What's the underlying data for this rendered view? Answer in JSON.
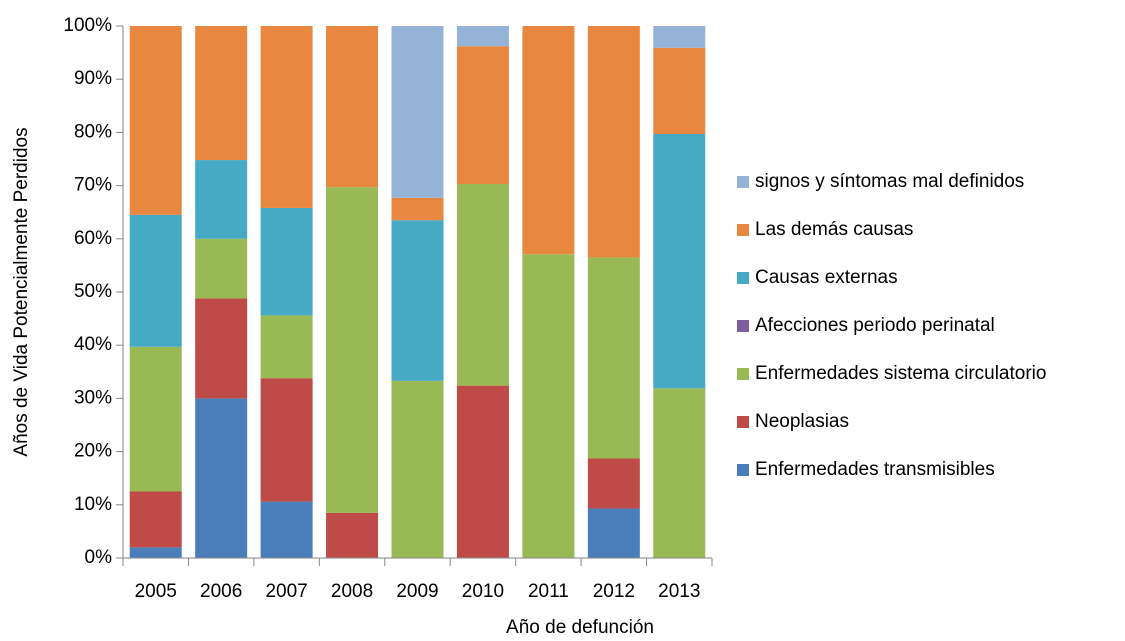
{
  "chart_data": {
    "type": "stacked_bar",
    "xlabel": "Año de defunción",
    "ylabel": "Años de Vida Potencialmente Perdidos",
    "categories": [
      "2005",
      "2006",
      "2007",
      "2008",
      "2009",
      "2010",
      "2011",
      "2012",
      "2013"
    ],
    "series": [
      {
        "name": "Enfermedades transmisibles",
        "color": "#4a7ebb",
        "values": [
          2,
          30,
          10.6,
          0,
          0,
          0,
          0,
          9.3,
          0
        ]
      },
      {
        "name": "Neoplasias",
        "color": "#be4b48",
        "values": [
          10.5,
          18.8,
          23.2,
          8.5,
          0,
          32.4,
          0,
          9.4,
          0
        ]
      },
      {
        "name": "Enfermedades sistema circulatorio",
        "color": "#98b954",
        "values": [
          27.2,
          11.2,
          11.8,
          61.2,
          33.3,
          37.9,
          57.1,
          37.8,
          31.9
        ]
      },
      {
        "name": "Afecciones periodo perinatal",
        "color": "#7d5fa0",
        "values": [
          0,
          0,
          0,
          0,
          0,
          0,
          0,
          0,
          0
        ]
      },
      {
        "name": "Causas externas",
        "color": "#46aac5",
        "values": [
          24.8,
          14.8,
          20.2,
          0,
          30.2,
          0,
          0,
          0,
          47.8
        ]
      },
      {
        "name": "Las demás causas",
        "color": "#e8873f",
        "values": [
          35.5,
          25.2,
          34.2,
          30.3,
          4.2,
          25.9,
          42.9,
          43.5,
          16.2
        ]
      },
      {
        "name": "signos y síntomas mal definidos",
        "color": "#95b3d7",
        "values": [
          0,
          0,
          0,
          0,
          32.3,
          3.8,
          0,
          0,
          4.1
        ]
      }
    ],
    "ylim": [
      0,
      100
    ],
    "yticks": [
      {
        "value": 0,
        "label": "0%"
      },
      {
        "value": 10,
        "label": "10%"
      },
      {
        "value": 20,
        "label": "20%"
      },
      {
        "value": 30,
        "label": "30%"
      },
      {
        "value": 40,
        "label": "40%"
      },
      {
        "value": 50,
        "label": "50%"
      },
      {
        "value": 60,
        "label": "60%"
      },
      {
        "value": 70,
        "label": "70%"
      },
      {
        "value": 80,
        "label": "80%"
      },
      {
        "value": 90,
        "label": "90%"
      },
      {
        "value": 100,
        "label": "100%"
      }
    ],
    "grid": false,
    "legend": "right"
  }
}
